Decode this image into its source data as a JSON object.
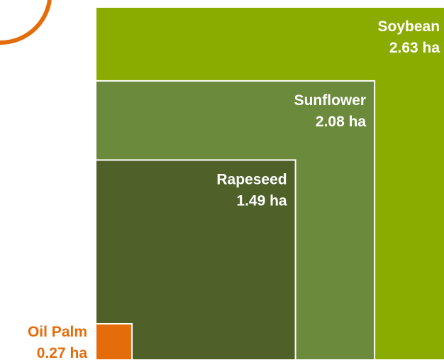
{
  "chart_data": {
    "type": "nested-squares",
    "categories": [
      "Soybean",
      "Sunflower",
      "Rapeseed",
      "Oil Palm"
    ],
    "values": [
      2.63,
      2.08,
      1.49,
      0.27
    ],
    "value_labels": [
      "2.63 ha",
      "2.08 ha",
      "1.49 ha",
      "0.27 ha"
    ],
    "colors": [
      "#8aab00",
      "#6b8a3b",
      "#4f6129",
      "#e46c0a"
    ]
  }
}
